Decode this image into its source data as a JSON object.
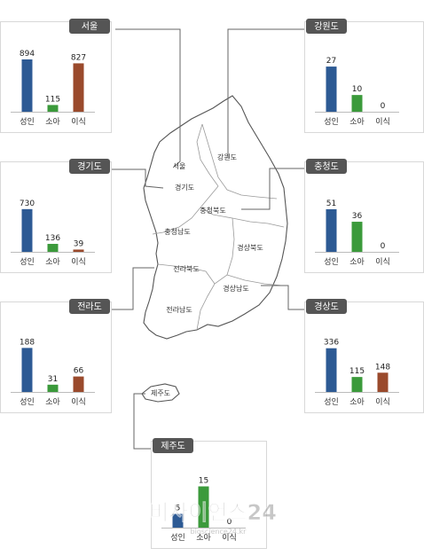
{
  "chart_data": [
    {
      "type": "bar",
      "title": "서울",
      "categories": [
        "성인",
        "소아",
        "이식"
      ],
      "values": [
        894,
        115,
        827
      ],
      "ylim": [
        0,
        1000
      ],
      "grid": false
    },
    {
      "type": "bar",
      "title": "경기도",
      "categories": [
        "성인",
        "소아",
        "이식"
      ],
      "values": [
        730,
        136,
        39
      ],
      "ylim": [
        0,
        1000
      ],
      "grid": false
    },
    {
      "type": "bar",
      "title": "전라도",
      "categories": [
        "성인",
        "소아",
        "이식"
      ],
      "values": [
        188,
        31,
        66
      ],
      "ylim": [
        0,
        250
      ],
      "grid": false
    },
    {
      "type": "bar",
      "title": "강원도",
      "categories": [
        "성인",
        "소아",
        "이식"
      ],
      "values": [
        27,
        10,
        0
      ],
      "ylim": [
        0,
        35
      ],
      "grid": false
    },
    {
      "type": "bar",
      "title": "충청도",
      "categories": [
        "성인",
        "소아",
        "이식"
      ],
      "values": [
        51,
        36,
        0
      ],
      "ylim": [
        0,
        70
      ],
      "grid": false
    },
    {
      "type": "bar",
      "title": "경상도",
      "categories": [
        "성인",
        "소아",
        "이식"
      ],
      "values": [
        336,
        115,
        148
      ],
      "ylim": [
        0,
        450
      ],
      "grid": false
    },
    {
      "type": "bar",
      "title": "제주도",
      "categories": [
        "성인",
        "소아",
        "이식"
      ],
      "values": [
        5,
        15,
        0
      ],
      "ylim": [
        0,
        20
      ],
      "grid": false
    }
  ],
  "colors": {
    "adult": "#2d5a94",
    "child": "#3b9a3b",
    "transplant": "#9a4a2c",
    "header_bg": "#555555",
    "panel_border": "#d8d8d8",
    "map_stroke": "#555555"
  },
  "map": {
    "region_labels": [
      "서울",
      "경기도",
      "강원도",
      "충청북도",
      "충청남도",
      "경상북도",
      "전라북도",
      "경상남도",
      "전라남도",
      "제주도"
    ]
  },
  "watermark": {
    "text": "비사이언스24",
    "url": "bioscience24.kr"
  }
}
